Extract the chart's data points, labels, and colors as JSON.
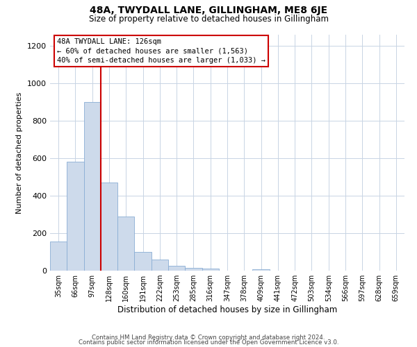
{
  "title": "48A, TWYDALL LANE, GILLINGHAM, ME8 6JE",
  "subtitle": "Size of property relative to detached houses in Gillingham",
  "xlabel": "Distribution of detached houses by size in Gillingham",
  "ylabel": "Number of detached properties",
  "bar_labels": [
    "35sqm",
    "66sqm",
    "97sqm",
    "128sqm",
    "160sqm",
    "191sqm",
    "222sqm",
    "253sqm",
    "285sqm",
    "316sqm",
    "347sqm",
    "378sqm",
    "409sqm",
    "441sqm",
    "472sqm",
    "503sqm",
    "534sqm",
    "566sqm",
    "597sqm",
    "628sqm",
    "659sqm"
  ],
  "bar_heights": [
    155,
    580,
    900,
    470,
    290,
    100,
    60,
    27,
    15,
    12,
    0,
    0,
    8,
    0,
    0,
    0,
    0,
    0,
    0,
    0,
    0
  ],
  "bar_color": "#cddaeb",
  "bar_edge_color": "#8aadd4",
  "vline_color": "#cc0000",
  "ylim": [
    0,
    1260
  ],
  "yticks": [
    0,
    200,
    400,
    600,
    800,
    1000,
    1200
  ],
  "annotation_title": "48A TWYDALL LANE: 126sqm",
  "annotation_line1": "← 60% of detached houses are smaller (1,563)",
  "annotation_line2": "40% of semi-detached houses are larger (1,033) →",
  "annotation_box_color": "#ffffff",
  "annotation_box_edge": "#cc0000",
  "footer_line1": "Contains HM Land Registry data © Crown copyright and database right 2024.",
  "footer_line2": "Contains public sector information licensed under the Open Government Licence v3.0.",
  "background_color": "#ffffff",
  "grid_color": "#c8d4e4"
}
